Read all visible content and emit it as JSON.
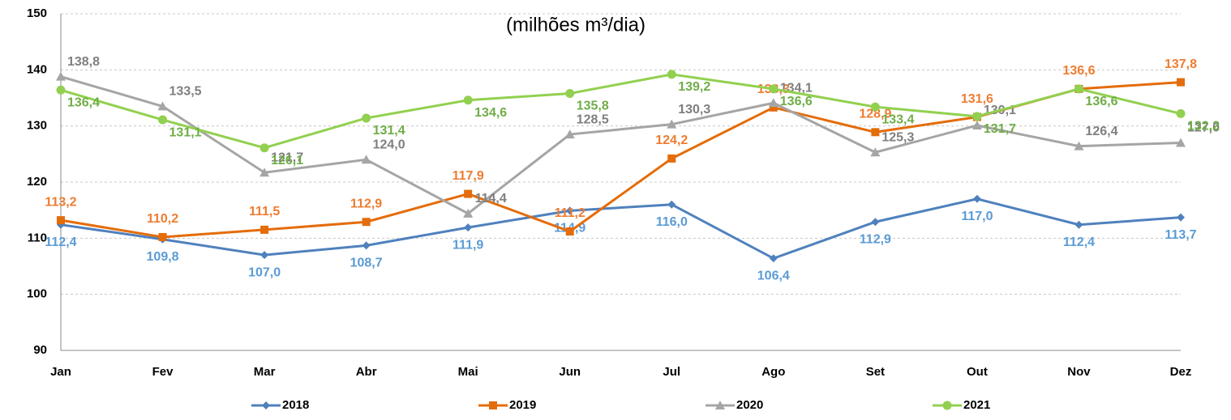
{
  "chart_data": {
    "type": "line",
    "subtitle": "(milhões m³/dia)",
    "categories": [
      "Jan",
      "Fev",
      "Mar",
      "Abr",
      "Mai",
      "Jun",
      "Jul",
      "Ago",
      "Set",
      "Out",
      "Nov",
      "Dez"
    ],
    "ylim": [
      90,
      150
    ],
    "yticks": [
      90,
      100,
      110,
      120,
      130,
      140,
      150
    ],
    "grid": true,
    "legend": "bottom",
    "series": [
      {
        "name": "2018",
        "color": "#4f81bd",
        "label_color": "#5b9bd5",
        "marker": "diamond",
        "values": [
          112.4,
          109.8,
          107.0,
          108.7,
          111.9,
          114.9,
          116.0,
          106.4,
          112.9,
          117.0,
          112.4,
          113.7
        ],
        "value_labels": [
          "112,4",
          "109,8",
          "107,0",
          "108,7",
          "111,9",
          "114,9",
          "116,0",
          "106,4",
          "112,9",
          "117,0",
          "112,4",
          "113,7"
        ]
      },
      {
        "name": "2019",
        "color": "#e46c0a",
        "label_color": "#ed7d31",
        "marker": "square",
        "values": [
          113.2,
          110.2,
          111.5,
          112.9,
          117.9,
          111.2,
          124.2,
          133.3,
          128.9,
          131.6,
          136.6,
          137.8
        ],
        "value_labels": [
          "113,2",
          "110,2",
          "111,5",
          "112,9",
          "117,9",
          "111,2",
          "124,2",
          "133,3",
          "128,9",
          "131,6",
          "136,6",
          "137,8"
        ]
      },
      {
        "name": "2020",
        "color": "#a5a5a5",
        "label_color": "#7f7f7f",
        "marker": "triangle",
        "values": [
          138.8,
          133.5,
          121.7,
          124.0,
          114.4,
          128.5,
          130.3,
          134.1,
          125.3,
          130.1,
          126.4,
          127.0
        ],
        "value_labels": [
          "138,8",
          "133,5",
          "121,7",
          "124,0",
          "114,4",
          "128,5",
          "130,3",
          "134,1",
          "125,3",
          "130,1",
          "126,4",
          "127,0"
        ]
      },
      {
        "name": "2021",
        "color": "#92d050",
        "label_color": "#70ad47",
        "marker": "circle",
        "values": [
          136.4,
          131.1,
          126.1,
          131.4,
          134.6,
          135.8,
          139.2,
          136.6,
          133.4,
          131.7,
          136.6,
          132.2
        ],
        "value_labels": [
          "136,4",
          "131,1",
          "126,1",
          "131,4",
          "134,6",
          "135,8",
          "139,2",
          "136,6",
          "133,4",
          "131,7",
          "136,6",
          "132,2"
        ]
      }
    ]
  }
}
